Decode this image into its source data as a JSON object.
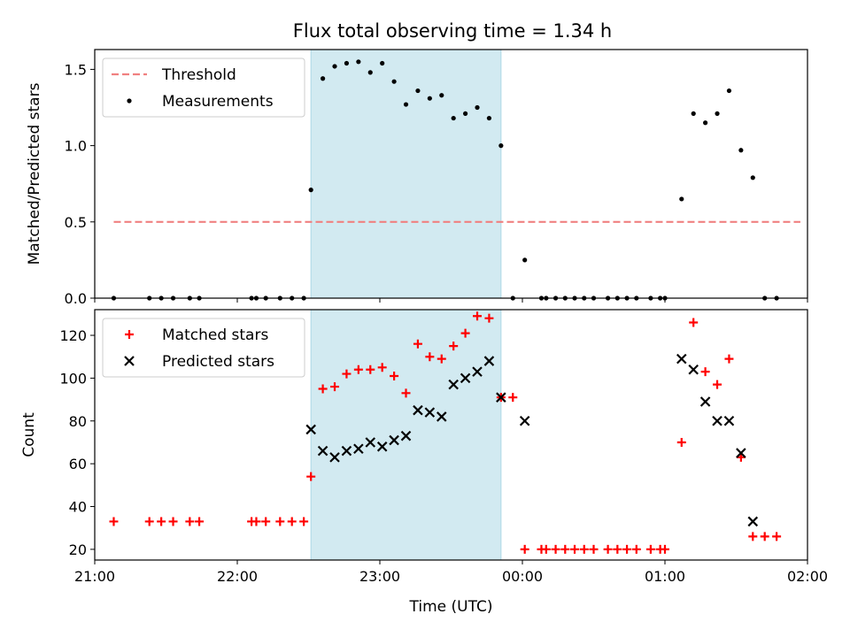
{
  "figure_title": "Flux total observing time = 1.34 h",
  "colors": {
    "threshold": "#f08080",
    "measurement": "#000000",
    "matched": "#ff0000",
    "predicted": "#000000",
    "shade": "#add8e6"
  },
  "chart_data": [
    {
      "type": "scatter",
      "title": "Flux total observing time = 1.34 h",
      "xlabel": "",
      "ylabel": "Matched/Predicted stars",
      "xlim": [
        "21:00",
        "02:00"
      ],
      "ylim": [
        0,
        1.63
      ],
      "x_ticks": [
        "21:00",
        "22:00",
        "23:00",
        "00:00",
        "01:00",
        "02:00"
      ],
      "y_ticks": [
        "0.0",
        "0.5",
        "1.0",
        "1.5"
      ],
      "shaded_region": {
        "start": "22:31",
        "end": "23:51"
      },
      "legend": {
        "position": "upper left",
        "entries": [
          "Threshold",
          "Measurements"
        ]
      },
      "threshold": {
        "name": "Threshold",
        "value": 0.5,
        "x_start": "21:08",
        "x_end": "01:57",
        "style": "dashed"
      },
      "series": [
        {
          "name": "Measurements",
          "marker": "dot",
          "points": [
            [
              "21:08",
              0
            ],
            [
              "21:23",
              0
            ],
            [
              "21:28",
              0
            ],
            [
              "21:33",
              0
            ],
            [
              "21:40",
              0
            ],
            [
              "21:44",
              0
            ],
            [
              "22:06",
              0
            ],
            [
              "22:08",
              0
            ],
            [
              "22:12",
              0
            ],
            [
              "22:18",
              0
            ],
            [
              "22:23",
              0
            ],
            [
              "22:28",
              0
            ],
            [
              "22:31",
              0.71
            ],
            [
              "22:36",
              1.44
            ],
            [
              "22:41",
              1.52
            ],
            [
              "22:46",
              1.54
            ],
            [
              "22:51",
              1.55
            ],
            [
              "22:56",
              1.48
            ],
            [
              "23:01",
              1.54
            ],
            [
              "23:06",
              1.42
            ],
            [
              "23:11",
              1.27
            ],
            [
              "23:16",
              1.36
            ],
            [
              "23:21",
              1.31
            ],
            [
              "23:26",
              1.33
            ],
            [
              "23:31",
              1.18
            ],
            [
              "23:36",
              1.21
            ],
            [
              "23:41",
              1.25
            ],
            [
              "23:46",
              1.18
            ],
            [
              "23:51",
              1.0
            ],
            [
              "23:56",
              0
            ],
            [
              "00:01",
              0.25
            ],
            [
              "00:08",
              0
            ],
            [
              "00:10",
              0
            ],
            [
              "00:14",
              0
            ],
            [
              "00:18",
              0
            ],
            [
              "00:22",
              0
            ],
            [
              "00:26",
              0
            ],
            [
              "00:30",
              0
            ],
            [
              "00:36",
              0
            ],
            [
              "00:40",
              0
            ],
            [
              "00:44",
              0
            ],
            [
              "00:48",
              0
            ],
            [
              "00:54",
              0
            ],
            [
              "00:58",
              0
            ],
            [
              "01:00",
              0
            ],
            [
              "01:07",
              0.65
            ],
            [
              "01:12",
              1.21
            ],
            [
              "01:17",
              1.15
            ],
            [
              "01:22",
              1.21
            ],
            [
              "01:27",
              1.36
            ],
            [
              "01:32",
              0.97
            ],
            [
              "01:37",
              0.79
            ],
            [
              "01:42",
              0
            ],
            [
              "01:47",
              0
            ]
          ]
        }
      ]
    },
    {
      "type": "scatter",
      "title": "",
      "xlabel": "Time (UTC)",
      "ylabel": "Count",
      "xlim": [
        "21:00",
        "02:00"
      ],
      "ylim": [
        15,
        132
      ],
      "x_ticks": [
        "21:00",
        "22:00",
        "23:00",
        "00:00",
        "01:00",
        "02:00"
      ],
      "y_ticks": [
        "20",
        "40",
        "60",
        "80",
        "100",
        "120"
      ],
      "shaded_region": {
        "start": "22:31",
        "end": "23:51"
      },
      "legend": {
        "position": "upper left",
        "entries": [
          "Matched stars",
          "Predicted stars"
        ]
      },
      "series": [
        {
          "name": "Matched stars",
          "marker": "plus",
          "points": [
            [
              "21:08",
              33
            ],
            [
              "21:23",
              33
            ],
            [
              "21:28",
              33
            ],
            [
              "21:33",
              33
            ],
            [
              "21:40",
              33
            ],
            [
              "21:44",
              33
            ],
            [
              "22:06",
              33
            ],
            [
              "22:08",
              33
            ],
            [
              "22:12",
              33
            ],
            [
              "22:18",
              33
            ],
            [
              "22:23",
              33
            ],
            [
              "22:28",
              33
            ],
            [
              "22:31",
              54
            ],
            [
              "22:36",
              95
            ],
            [
              "22:41",
              96
            ],
            [
              "22:46",
              102
            ],
            [
              "22:51",
              104
            ],
            [
              "22:56",
              104
            ],
            [
              "23:01",
              105
            ],
            [
              "23:06",
              101
            ],
            [
              "23:11",
              93
            ],
            [
              "23:16",
              116
            ],
            [
              "23:21",
              110
            ],
            [
              "23:26",
              109
            ],
            [
              "23:31",
              115
            ],
            [
              "23:36",
              121
            ],
            [
              "23:41",
              129
            ],
            [
              "23:46",
              128
            ],
            [
              "23:51",
              91
            ],
            [
              "23:56",
              91
            ],
            [
              "00:01",
              20
            ],
            [
              "00:08",
              20
            ],
            [
              "00:10",
              20
            ],
            [
              "00:14",
              20
            ],
            [
              "00:18",
              20
            ],
            [
              "00:22",
              20
            ],
            [
              "00:26",
              20
            ],
            [
              "00:30",
              20
            ],
            [
              "00:36",
              20
            ],
            [
              "00:40",
              20
            ],
            [
              "00:44",
              20
            ],
            [
              "00:48",
              20
            ],
            [
              "00:54",
              20
            ],
            [
              "00:58",
              20
            ],
            [
              "01:00",
              20
            ],
            [
              "01:07",
              70
            ],
            [
              "01:12",
              126
            ],
            [
              "01:17",
              103
            ],
            [
              "01:22",
              97
            ],
            [
              "01:27",
              109
            ],
            [
              "01:32",
              63
            ],
            [
              "01:37",
              26
            ],
            [
              "01:42",
              26
            ],
            [
              "01:47",
              26
            ]
          ]
        },
        {
          "name": "Predicted stars",
          "marker": "x",
          "points": [
            [
              "22:31",
              76
            ],
            [
              "22:36",
              66
            ],
            [
              "22:41",
              63
            ],
            [
              "22:46",
              66
            ],
            [
              "22:51",
              67
            ],
            [
              "22:56",
              70
            ],
            [
              "23:01",
              68
            ],
            [
              "23:06",
              71
            ],
            [
              "23:11",
              73
            ],
            [
              "23:16",
              85
            ],
            [
              "23:21",
              84
            ],
            [
              "23:26",
              82
            ],
            [
              "23:31",
              97
            ],
            [
              "23:36",
              100
            ],
            [
              "23:41",
              103
            ],
            [
              "23:46",
              108
            ],
            [
              "23:51",
              91
            ],
            [
              "00:01",
              80
            ],
            [
              "01:07",
              109
            ],
            [
              "01:12",
              104
            ],
            [
              "01:17",
              89
            ],
            [
              "01:22",
              80
            ],
            [
              "01:27",
              80
            ],
            [
              "01:32",
              65
            ],
            [
              "01:37",
              33
            ]
          ]
        }
      ]
    }
  ]
}
